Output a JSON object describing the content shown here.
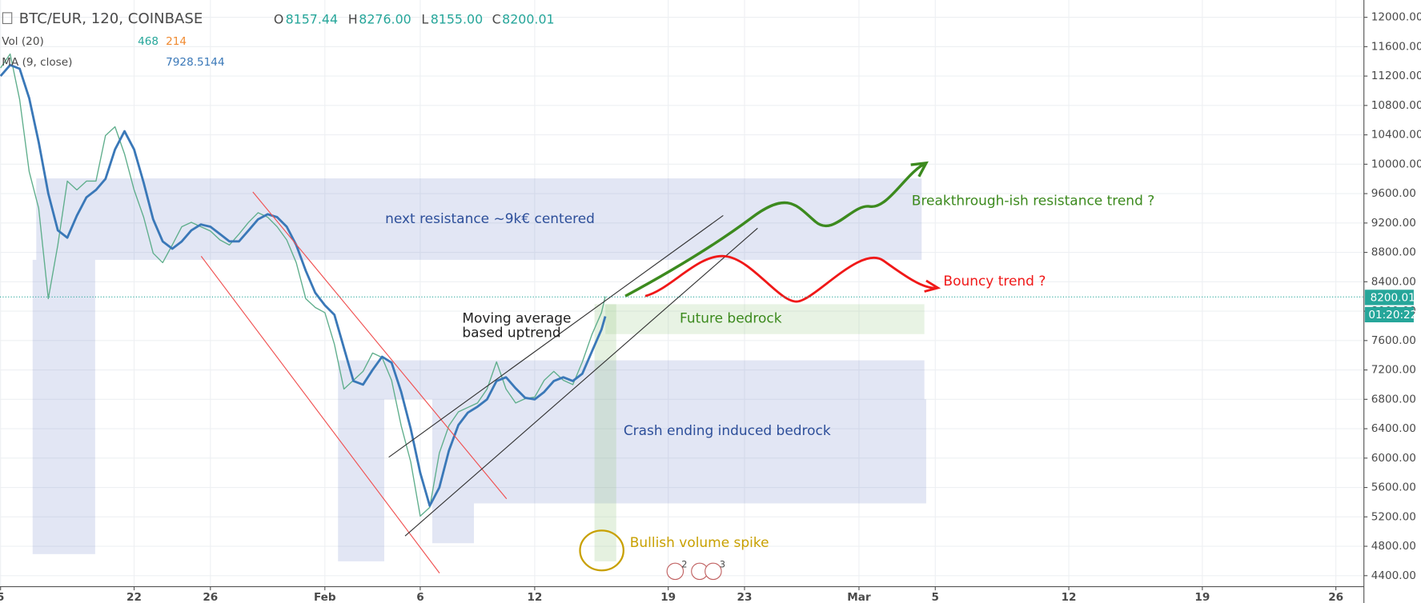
{
  "chart_data": {
    "type": "line",
    "symbol": "BTC/EUR, 120, COINBASE",
    "ohlc": [
      {
        "key": "O",
        "value": "8157.44"
      },
      {
        "key": "H",
        "value": "8276.00"
      },
      {
        "key": "L",
        "value": "8155.00"
      },
      {
        "key": "C",
        "value": "8200.01"
      }
    ],
    "volume_label": "Vol (20)",
    "volume_values": [
      "468",
      "214"
    ],
    "ma_label": "MA (9, close)",
    "ma_value": "7928.5144",
    "last_price": "8200.01",
    "countdown": "01:20:22",
    "annotations": [
      "next resistance ~9k€ centered",
      "Breakthrough-ish resistance trend ?",
      "Bouncy trend ?",
      "Future bedrock",
      "Moving average",
      "based uptrend",
      "Crash ending induced bedrock",
      "Bullish volume spike",
      "2",
      "3"
    ],
    "x": [
      15,
      15.5,
      16,
      16.5,
      17,
      17.5,
      18,
      18.5,
      19,
      19.5,
      20,
      20.5,
      21,
      21.5,
      22,
      22.5,
      23,
      23.5,
      24,
      24.5,
      25,
      25.5,
      26,
      26.5,
      27,
      27.5,
      28,
      28.5,
      29,
      29.5,
      30,
      30.5,
      31,
      31.5,
      32,
      32.5,
      33,
      33.5,
      34,
      34.5,
      35,
      35.5,
      36,
      36.5,
      37,
      37.5,
      38,
      38.5,
      39,
      39.5,
      40,
      40.5,
      41,
      41.5,
      42,
      42.5,
      43,
      43.5,
      44,
      44.5,
      45,
      45.5,
      46,
      46.5,
      46.7
    ],
    "series": [
      {
        "color": "#5fae8c",
        "values": [
          11310,
          11500,
          10880,
          9900,
          9400,
          8170,
          8900,
          9770,
          9650,
          9770,
          9770,
          10390,
          10510,
          10140,
          9650,
          9280,
          8790,
          8660,
          8900,
          9150,
          9210,
          9150,
          9090,
          8970,
          8900,
          9050,
          9210,
          9340,
          9280,
          9150,
          8970,
          8660,
          8170,
          8050,
          7980,
          7550,
          6940,
          7060,
          7180,
          7430,
          7370,
          7060,
          6440,
          5950,
          5210,
          5330,
          6070,
          6440,
          6630,
          6690,
          6750,
          6940,
          7310,
          6940,
          6750,
          6810,
          6830,
          7060,
          7180,
          7060,
          7000,
          7310,
          7680,
          7980,
          8200
        ]
      },
      {
        "color": "#3a78b8",
        "values": [
          11200,
          11350,
          11300,
          10900,
          10300,
          9600,
          9100,
          9000,
          9300,
          9550,
          9650,
          9800,
          10200,
          10450,
          10200,
          9750,
          9250,
          8950,
          8850,
          8950,
          9100,
          9180,
          9150,
          9050,
          8950,
          8950,
          9100,
          9250,
          9320,
          9280,
          9150,
          8900,
          8550,
          8250,
          8080,
          7950,
          7500,
          7050,
          7000,
          7200,
          7380,
          7300,
          6900,
          6400,
          5800,
          5350,
          5600,
          6100,
          6450,
          6620,
          6700,
          6800,
          7050,
          7100,
          6950,
          6820,
          6800,
          6900,
          7050,
          7100,
          7050,
          7150,
          7450,
          7750,
          7930
        ]
      }
    ],
    "xlim": [
      14.97,
      86.47
    ],
    "xticks": [
      {
        "value": 15,
        "label": "5"
      },
      22,
      26,
      {
        "value": 32,
        "label": "Feb"
      },
      {
        "value": 37,
        "label": "6"
      },
      {
        "value": 43,
        "label": "12"
      },
      {
        "value": 50,
        "label": "19"
      },
      {
        "value": 54,
        "label": "23"
      },
      {
        "value": 60,
        "label": "Mar"
      },
      {
        "value": 64,
        "label": "5"
      },
      {
        "value": 71,
        "label": "12"
      },
      {
        "value": 78,
        "label": "19"
      },
      {
        "value": 85,
        "label": "26"
      }
    ],
    "ylim": [
      4250,
      12235
    ],
    "yticks": [
      {
        "value": 4400,
        "label": "4400.00"
      },
      {
        "value": 4800,
        "label": "4800.00"
      },
      {
        "value": 5200,
        "label": "5200.00"
      },
      {
        "value": 5600,
        "label": "5600.00"
      },
      {
        "value": 6000,
        "label": "6000.00"
      },
      {
        "value": 6400,
        "label": "6400.00"
      },
      {
        "value": 6800,
        "label": "6800.00"
      },
      {
        "value": 7200,
        "label": "7200.00"
      },
      {
        "value": 7600,
        "label": "7600.00"
      },
      {
        "value": 8000,
        "label": "8000.00"
      },
      {
        "value": 8400,
        "label": "8400.00"
      },
      {
        "value": 8800,
        "label": "8800.00"
      },
      {
        "value": 9200,
        "label": "9200.00"
      },
      {
        "value": 9600,
        "label": "9600.00"
      },
      {
        "value": 10000,
        "label": "10000.00"
      },
      {
        "value": 10400,
        "label": "10400.00"
      },
      {
        "value": 10800,
        "label": "10800.00"
      },
      {
        "value": 11200,
        "label": "11200.00"
      },
      {
        "value": 11600,
        "label": "11600.00"
      },
      {
        "value": 12000,
        "label": "12000.00"
      }
    ],
    "grid": true
  }
}
